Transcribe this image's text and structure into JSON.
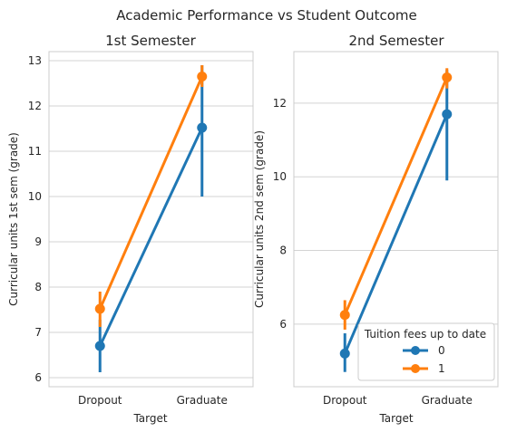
{
  "suptitle": "Academic Performance vs Student Outcome",
  "colors": {
    "series0": "#1f77b4",
    "series1": "#ff7f0e",
    "grid": "#d3d3d3",
    "spine": "#cccccc"
  },
  "legend": {
    "title": "Tuition fees up to date",
    "placement": "lower-right",
    "entries": [
      "0",
      "1"
    ]
  },
  "chart_data": [
    {
      "type": "line",
      "title": "1st Semester",
      "xlabel": "Target",
      "ylabel": "Curricular units 1st sem (grade)",
      "categories": [
        "Dropout",
        "Graduate"
      ],
      "ylim": [
        5.8,
        13.2
      ],
      "yticks": [
        6,
        7,
        8,
        9,
        10,
        11,
        12,
        13
      ],
      "grid": true,
      "series": [
        {
          "name": "0",
          "values": [
            6.7,
            11.52
          ],
          "ci_low": [
            6.12,
            10.0
          ],
          "ci_high": [
            7.28,
            12.9
          ]
        },
        {
          "name": "1",
          "values": [
            7.52,
            12.65
          ],
          "ci_low": [
            7.12,
            12.42
          ],
          "ci_high": [
            7.9,
            12.9
          ]
        }
      ]
    },
    {
      "type": "line",
      "title": "2nd Semester",
      "xlabel": "Target",
      "ylabel": "Curricular units 2nd sem (grade)",
      "categories": [
        "Dropout",
        "Graduate"
      ],
      "ylim": [
        4.3,
        13.4
      ],
      "yticks": [
        6,
        8,
        10,
        12
      ],
      "grid": true,
      "series": [
        {
          "name": "0",
          "values": [
            5.2,
            11.7
          ],
          "ci_low": [
            4.7,
            9.9
          ],
          "ci_high": [
            5.75,
            12.9
          ]
        },
        {
          "name": "1",
          "values": [
            6.25,
            12.7
          ],
          "ci_low": [
            5.85,
            12.4
          ],
          "ci_high": [
            6.65,
            12.95
          ]
        }
      ]
    }
  ]
}
